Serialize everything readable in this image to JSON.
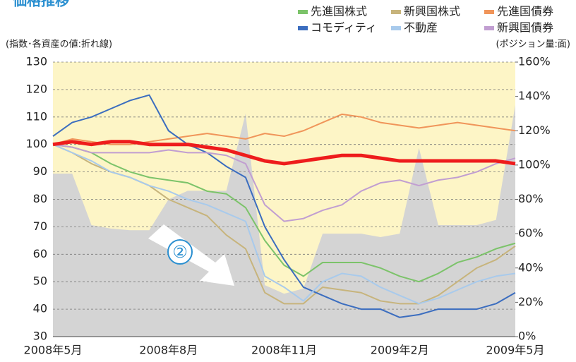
{
  "chart_data": {
    "type": "line",
    "title": "価格推移",
    "y_label": "(指数･各資産の値:折れ線)",
    "y2_label": "(ポジション量:面)",
    "annotation": "②",
    "categories": [
      "2008年5月",
      null,
      null,
      null,
      null,
      null,
      "2008年8月",
      null,
      null,
      null,
      null,
      null,
      "2008年11月",
      null,
      null,
      null,
      null,
      null,
      "2009年2月",
      null,
      null,
      null,
      null,
      null,
      "2009年5月"
    ],
    "ylim": [
      30,
      130
    ],
    "yticks": [
      30,
      40,
      50,
      60,
      70,
      80,
      90,
      100,
      110,
      120,
      130
    ],
    "y2lim": [
      0,
      160
    ],
    "y2ticks": [
      {
        "value": 0,
        "label": "0%"
      },
      {
        "value": 20,
        "label": "20%"
      },
      {
        "value": 40,
        "label": "40%"
      },
      {
        "value": 60,
        "label": "60%"
      },
      {
        "value": 80,
        "label": "80%"
      },
      {
        "value": 100,
        "label": "100%"
      },
      {
        "value": 120,
        "label": "120%"
      },
      {
        "value": 140,
        "label": "140%"
      },
      {
        "value": 160,
        "label": "160%"
      }
    ],
    "grid": true,
    "background": "#fdf5c6",
    "area": {
      "color": "#d4d4d4",
      "axis": "y2",
      "values": [
        95,
        95,
        65,
        63,
        62,
        62,
        80,
        85,
        85,
        85,
        130,
        30,
        25,
        28,
        60,
        60,
        60,
        58,
        60,
        110,
        65,
        65,
        65,
        68,
        135
      ]
    },
    "series": [
      {
        "name": "先進国株式",
        "color": "#7cc36a",
        "values": [
          100,
          99,
          97,
          93,
          90,
          88,
          87,
          86,
          83,
          82,
          77,
          65,
          56,
          52,
          57,
          57,
          57,
          55,
          52,
          50,
          53,
          57,
          59,
          62,
          64
        ]
      },
      {
        "name": "新興国株式",
        "color": "#c7b47c",
        "values": [
          100,
          97,
          93,
          90,
          88,
          85,
          80,
          77,
          74,
          67,
          62,
          46,
          42,
          42,
          48,
          47,
          46,
          43,
          42,
          42,
          45,
          50,
          55,
          58,
          63
        ]
      },
      {
        "name": "先進国債券",
        "color": "#f0955a",
        "values": [
          100,
          102,
          101,
          100,
          100,
          101,
          102,
          103,
          104,
          103,
          102,
          104,
          103,
          105,
          108,
          111,
          110,
          108,
          107,
          106,
          107,
          108,
          107,
          106,
          105
        ]
      },
      {
        "name": "コモディティ",
        "color": "#3b6dbf",
        "values": [
          103,
          108,
          110,
          113,
          116,
          118,
          105,
          100,
          97,
          92,
          88,
          70,
          58,
          48,
          45,
          42,
          40,
          40,
          37,
          38,
          40,
          40,
          40,
          42,
          46
        ]
      },
      {
        "name": "不動産",
        "color": "#a8caec",
        "values": [
          100,
          97,
          94,
          90,
          88,
          85,
          83,
          80,
          78,
          75,
          72,
          52,
          48,
          43,
          50,
          53,
          52,
          48,
          45,
          42,
          44,
          47,
          50,
          52,
          53
        ]
      },
      {
        "name": "新興国債券",
        "color": "#c19ed1",
        "values": [
          100,
          99,
          97,
          97,
          97,
          97,
          98,
          97,
          97,
          96,
          93,
          78,
          72,
          73,
          76,
          78,
          83,
          86,
          87,
          85,
          87,
          88,
          90,
          93,
          95
        ]
      },
      {
        "color": "#ee1c1c",
        "width": 5,
        "values": [
          100,
          101,
          100,
          101,
          101,
          100,
          100,
          100,
          99,
          98,
          96,
          94,
          93,
          94,
          95,
          96,
          96,
          95,
          94,
          94,
          94,
          94,
          94,
          94,
          93
        ]
      }
    ]
  }
}
